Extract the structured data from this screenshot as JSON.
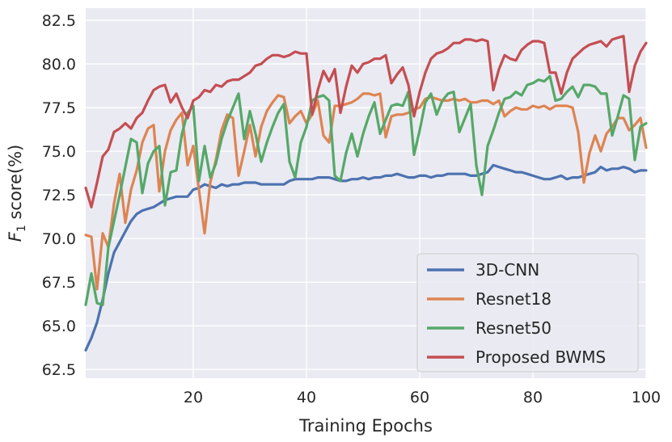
{
  "chart_data": {
    "type": "line",
    "title": "",
    "xlabel": "Training Epochs",
    "ylabel": {
      "prefix": "F",
      "subscript": "1",
      "suffix": " score(%)"
    },
    "xlim": [
      1,
      100
    ],
    "ylim": [
      62.0,
      83.2
    ],
    "xticks": [
      20,
      40,
      60,
      80,
      100
    ],
    "yticks": [
      "62.5",
      "65.0",
      "67.5",
      "70.0",
      "72.5",
      "75.0",
      "77.5",
      "80.0",
      "82.5"
    ],
    "grid": true,
    "legend_position": "lower-right",
    "series": [
      {
        "name": "3D-CNN",
        "color": "#4c72b0",
        "values": [
          63.6,
          64.3,
          65.2,
          66.5,
          68.0,
          69.2,
          69.8,
          70.4,
          71.0,
          71.4,
          71.6,
          71.7,
          71.8,
          72.0,
          72.2,
          72.3,
          72.4,
          72.4,
          72.4,
          72.8,
          72.9,
          73.1,
          73.0,
          72.9,
          73.1,
          73.0,
          73.1,
          73.1,
          73.2,
          73.2,
          73.2,
          73.1,
          73.1,
          73.1,
          73.1,
          73.1,
          73.3,
          73.4,
          73.4,
          73.4,
          73.4,
          73.5,
          73.5,
          73.5,
          73.4,
          73.3,
          73.3,
          73.4,
          73.4,
          73.5,
          73.4,
          73.5,
          73.5,
          73.6,
          73.6,
          73.7,
          73.6,
          73.5,
          73.5,
          73.6,
          73.6,
          73.5,
          73.6,
          73.6,
          73.7,
          73.7,
          73.7,
          73.7,
          73.6,
          73.6,
          73.7,
          73.8,
          74.2,
          74.1,
          74.0,
          73.9,
          73.8,
          73.8,
          73.7,
          73.6,
          73.5,
          73.4,
          73.4,
          73.5,
          73.6,
          73.4,
          73.5,
          73.5,
          73.6,
          73.7,
          73.8,
          74.1,
          73.9,
          74.0,
          74.0,
          74.1,
          74.0,
          73.8,
          73.9,
          73.9
        ]
      },
      {
        "name": "Resnet18",
        "color": "#dd8452",
        "values": [
          70.2,
          70.1,
          67.1,
          70.3,
          69.5,
          72.0,
          73.7,
          70.9,
          72.8,
          73.9,
          75.5,
          76.3,
          76.5,
          72.7,
          75.0,
          76.2,
          76.8,
          77.2,
          74.2,
          75.3,
          72.8,
          70.3,
          73.2,
          74.5,
          76.2,
          77.1,
          76.9,
          73.6,
          75.0,
          76.5,
          74.7,
          76.4,
          77.3,
          77.8,
          78.2,
          78.1,
          76.6,
          77.0,
          77.3,
          76.6,
          77.1,
          77.9,
          75.9,
          75.5,
          77.6,
          77.6,
          77.7,
          77.8,
          78.0,
          78.3,
          78.3,
          78.2,
          78.3,
          75.8,
          77.0,
          77.1,
          77.1,
          77.2,
          77.4,
          77.5,
          78.0,
          78.1,
          78.0,
          77.9,
          77.9,
          78.0,
          77.9,
          78.0,
          77.8,
          77.8,
          77.9,
          77.9,
          77.7,
          77.9,
          77.0,
          77.3,
          77.5,
          77.4,
          77.4,
          77.6,
          77.5,
          77.6,
          77.4,
          77.6,
          77.6,
          77.6,
          77.5,
          76.1,
          73.2,
          74.9,
          75.9,
          75.0,
          76.0,
          76.4,
          76.9,
          76.9,
          76.2,
          76.5,
          76.9,
          75.2
        ]
      },
      {
        "name": "Resnet50",
        "color": "#55a868",
        "values": [
          66.2,
          68.0,
          66.3,
          66.2,
          69.5,
          71.0,
          72.5,
          74.1,
          75.7,
          75.5,
          72.6,
          74.3,
          75.0,
          75.3,
          71.9,
          73.8,
          73.9,
          76.0,
          77.2,
          77.6,
          73.3,
          75.3,
          73.5,
          74.3,
          75.7,
          76.7,
          77.5,
          78.3,
          75.7,
          77.3,
          76.0,
          74.4,
          75.5,
          76.4,
          77.2,
          77.7,
          74.4,
          73.5,
          75.5,
          76.4,
          77.9,
          78.1,
          78.2,
          77.9,
          73.6,
          73.3,
          74.9,
          76.0,
          74.7,
          76.0,
          77.0,
          77.8,
          76.0,
          76.8,
          77.6,
          77.7,
          77.6,
          78.4,
          74.8,
          76.2,
          77.8,
          78.3,
          77.1,
          77.9,
          78.3,
          78.4,
          76.1,
          76.9,
          77.7,
          74.2,
          72.5,
          75.3,
          76.2,
          77.2,
          78.0,
          78.1,
          78.4,
          78.2,
          78.8,
          78.9,
          79.1,
          79.0,
          79.3,
          77.9,
          78.0,
          78.4,
          78.7,
          78.1,
          78.8,
          78.8,
          78.7,
          78.3,
          78.3,
          75.9,
          77.0,
          78.2,
          78.0,
          74.5,
          76.4,
          76.6
        ]
      },
      {
        "name": "Proposed BWMS",
        "color": "#c44e52",
        "values": [
          72.9,
          71.8,
          73.2,
          74.7,
          75.1,
          76.1,
          76.3,
          76.6,
          76.3,
          76.9,
          77.2,
          77.9,
          78.5,
          78.7,
          78.8,
          77.8,
          78.3,
          77.5,
          76.9,
          77.9,
          78.1,
          78.5,
          78.4,
          78.8,
          78.7,
          79.0,
          79.1,
          79.1,
          79.3,
          79.5,
          79.9,
          80.0,
          80.3,
          80.5,
          80.5,
          80.4,
          80.5,
          80.7,
          80.6,
          80.6,
          77.1,
          78.5,
          79.6,
          79.0,
          79.7,
          77.2,
          78.7,
          79.9,
          79.5,
          80.0,
          80.1,
          80.3,
          80.3,
          80.5,
          78.9,
          79.4,
          79.8,
          78.8,
          77.0,
          78.4,
          79.5,
          80.3,
          80.6,
          80.7,
          80.9,
          81.2,
          81.2,
          81.4,
          81.4,
          81.3,
          81.4,
          81.3,
          78.5,
          79.7,
          80.5,
          80.3,
          80.2,
          80.8,
          81.1,
          81.3,
          81.3,
          81.2,
          79.5,
          79.5,
          78.3,
          79.5,
          80.3,
          80.6,
          80.9,
          81.1,
          81.2,
          81.3,
          81.0,
          81.4,
          81.5,
          81.6,
          78.4,
          79.9,
          80.7,
          81.2
        ]
      }
    ]
  }
}
